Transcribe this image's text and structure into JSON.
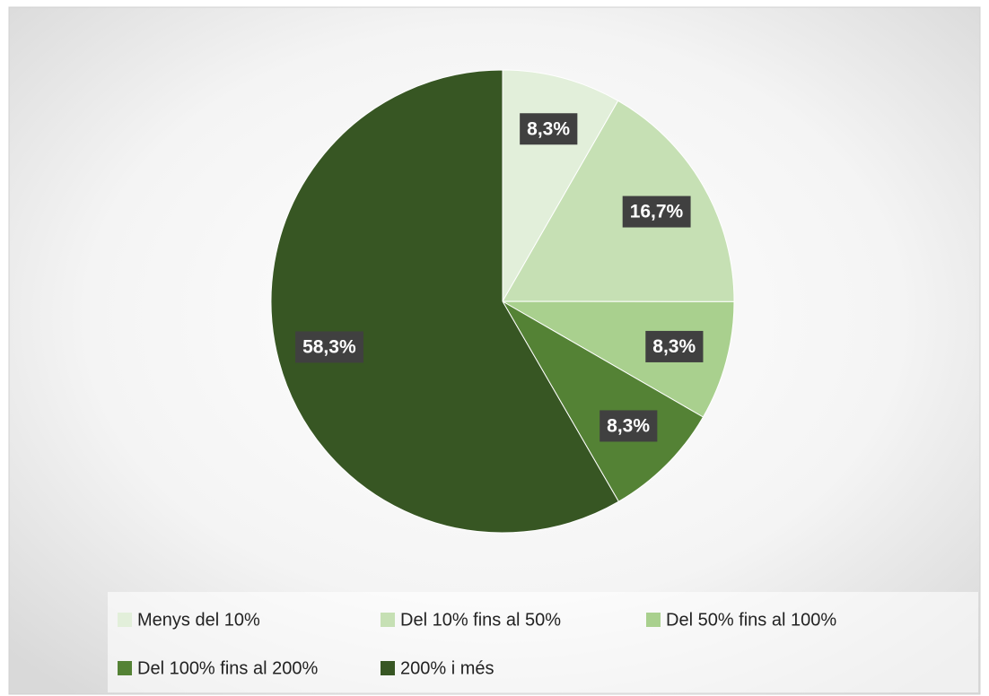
{
  "chart_data": {
    "type": "pie",
    "categories": [
      "Menys del 10%",
      "Del 10% fins al 50%",
      "Del 50% fins al 100%",
      "Del 100% fins al 200%",
      "200% i més"
    ],
    "values": [
      8.3,
      16.7,
      8.3,
      8.3,
      58.3
    ],
    "value_labels": [
      "8,3%",
      "16,7%",
      "8,3%",
      "8,3%",
      "58,3%"
    ],
    "colors": [
      "#e2efda",
      "#c6e0b4",
      "#a9d08e",
      "#548235",
      "#375623"
    ],
    "legend": "bottom"
  }
}
